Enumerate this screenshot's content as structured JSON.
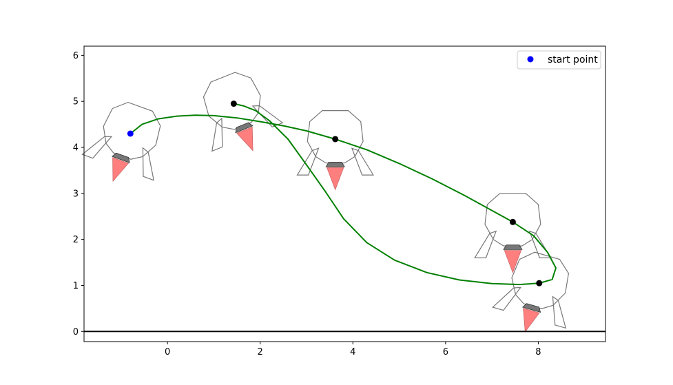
{
  "chart_data": {
    "type": "scatter",
    "title": "",
    "xlabel": "",
    "ylabel": "",
    "xlim": [
      -1.8,
      9.45
    ],
    "ylim": [
      -0.22,
      6.2
    ],
    "x_ticks": [
      0,
      2,
      4,
      6,
      8
    ],
    "y_ticks": [
      0,
      1,
      2,
      3,
      4,
      5,
      6
    ],
    "x_tick_labels": [
      "0",
      "2",
      "4",
      "6",
      "8"
    ],
    "y_tick_labels": [
      "0",
      "1",
      "2",
      "3",
      "4",
      "5",
      "6"
    ],
    "grid": false,
    "legend": {
      "position": "upper-right",
      "entries": [
        {
          "label": "start point",
          "color": "#0000ff",
          "marker": "circle"
        }
      ]
    },
    "ground_line": {
      "y": 0,
      "color": "#000000"
    },
    "start_point": {
      "x": -0.8,
      "y": 4.3,
      "color": "#0000ff"
    },
    "waypoints": [
      {
        "x": 1.43,
        "y": 4.95
      },
      {
        "x": 3.62,
        "y": 4.18
      },
      {
        "x": 7.45,
        "y": 2.38
      },
      {
        "x": 8.02,
        "y": 1.05
      }
    ],
    "trajectory_color": "#008000",
    "trajectory": [
      [
        -0.8,
        4.3
      ],
      [
        -0.55,
        4.5
      ],
      [
        -0.2,
        4.62
      ],
      [
        0.2,
        4.68
      ],
      [
        0.6,
        4.7
      ],
      [
        1.0,
        4.69
      ],
      [
        1.5,
        4.64
      ],
      [
        2.0,
        4.56
      ],
      [
        2.5,
        4.47
      ],
      [
        3.0,
        4.36
      ],
      [
        3.62,
        4.18
      ],
      [
        4.3,
        3.95
      ],
      [
        5.0,
        3.65
      ],
      [
        5.7,
        3.32
      ],
      [
        6.4,
        2.96
      ],
      [
        7.0,
        2.63
      ],
      [
        7.45,
        2.38
      ],
      [
        7.9,
        2.08
      ],
      [
        8.2,
        1.72
      ],
      [
        8.38,
        1.38
      ],
      [
        8.3,
        1.13
      ],
      [
        8.02,
        1.05
      ],
      [
        7.6,
        1.02
      ],
      [
        7.0,
        1.04
      ],
      [
        6.3,
        1.12
      ],
      [
        5.6,
        1.28
      ],
      [
        4.9,
        1.55
      ],
      [
        4.3,
        1.93
      ],
      [
        3.8,
        2.45
      ],
      [
        3.4,
        3.05
      ],
      [
        3.0,
        3.62
      ],
      [
        2.6,
        4.18
      ],
      [
        2.2,
        4.58
      ],
      [
        1.9,
        4.8
      ],
      [
        1.65,
        4.9
      ],
      [
        1.43,
        4.95
      ]
    ],
    "robot_poses": [
      {
        "x": -0.8,
        "y": 4.3,
        "angle_deg": -20
      },
      {
        "x": 1.43,
        "y": 4.95,
        "angle_deg": 22
      },
      {
        "x": 3.62,
        "y": 4.18,
        "angle_deg": 0
      },
      {
        "x": 7.45,
        "y": 2.38,
        "angle_deg": 0
      },
      {
        "x": 8.02,
        "y": 1.05,
        "angle_deg": -16
      }
    ],
    "robot_outline_color": "#777777",
    "thruster_color": "#ff7f7f",
    "thruster_mount_color": "#777777"
  }
}
